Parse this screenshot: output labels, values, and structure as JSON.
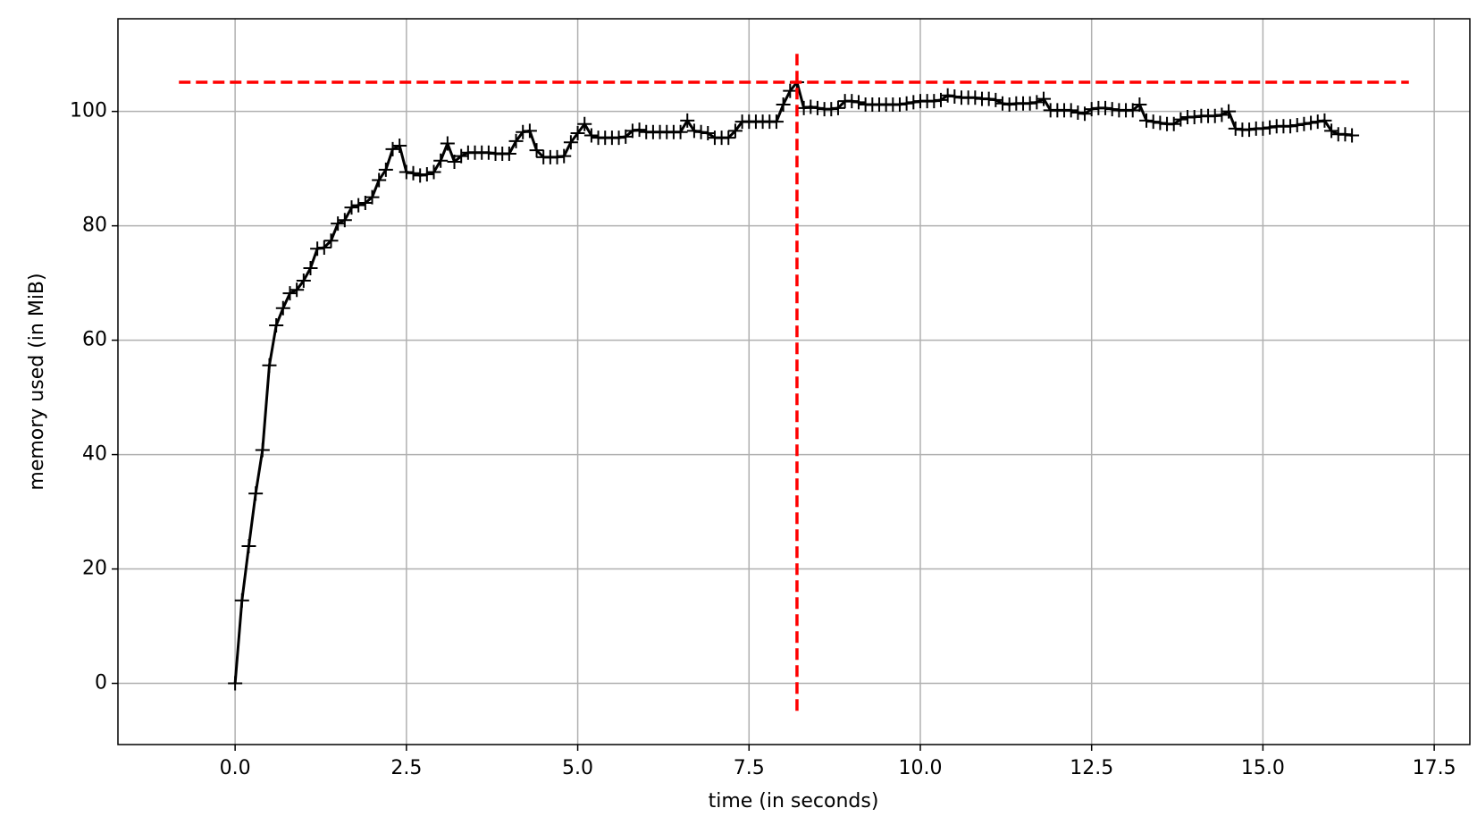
{
  "chart_data": {
    "type": "line",
    "xlabel": "time (in seconds)",
    "ylabel": "memory used (in MiB)",
    "color": "#000000",
    "marker": "+",
    "grid": true,
    "xlim": [
      -1.71,
      18.02
    ],
    "ylim": [
      -10.7,
      116.2
    ],
    "xticks": [
      {
        "value": 0,
        "label": "0.0"
      },
      2.5,
      {
        "value": 5,
        "label": "5.0"
      },
      7.5,
      {
        "value": 10,
        "label": "10.0"
      },
      12.5,
      {
        "value": 15,
        "label": "15.0"
      },
      17.5
    ],
    "yticks": [
      0,
      20,
      40,
      60,
      80,
      100
    ],
    "x": [
      0,
      0.1,
      0.2,
      0.3,
      0.4,
      0.5,
      0.6,
      0.7,
      0.8,
      0.9,
      1,
      1.1,
      1.2,
      1.3,
      1.4,
      1.5,
      1.6,
      1.7,
      1.8,
      1.9,
      2,
      2.1,
      2.2,
      2.3,
      2.4,
      2.5,
      2.6,
      2.7,
      2.8,
      2.9,
      3,
      3.1,
      3.2,
      3.3,
      3.4,
      3.5,
      3.6,
      3.7,
      3.8,
      3.9,
      4,
      4.1,
      4.2,
      4.3,
      4.4,
      4.5,
      4.6,
      4.7,
      4.8,
      4.9,
      5,
      5.1,
      5.2,
      5.3,
      5.4,
      5.5,
      5.6,
      5.7,
      5.8,
      5.9,
      6,
      6.1,
      6.2,
      6.3,
      6.4,
      6.5,
      6.6,
      6.7,
      6.8,
      6.9,
      7,
      7.1,
      7.2,
      7.3,
      7.4,
      7.5,
      7.6,
      7.7,
      7.8,
      7.9,
      8,
      8.1,
      8.2,
      8.3,
      8.4,
      8.5,
      8.6,
      8.7,
      8.8,
      8.9,
      9,
      9.1,
      9.2,
      9.3,
      9.4,
      9.5,
      9.6,
      9.7,
      9.8,
      9.9,
      10,
      10.1,
      10.2,
      10.3,
      10.4,
      10.5,
      10.6,
      10.7,
      10.8,
      10.9,
      11,
      11.1,
      11.2,
      11.3,
      11.4,
      11.5,
      11.6,
      11.7,
      11.8,
      11.9,
      12,
      12.1,
      12.2,
      12.3,
      12.4,
      12.5,
      12.6,
      12.7,
      12.8,
      12.9,
      13,
      13.1,
      13.2,
      13.3,
      13.4,
      13.5,
      13.6,
      13.7,
      13.8,
      13.9,
      14,
      14.1,
      14.2,
      14.3,
      14.4,
      14.5,
      14.6,
      14.7,
      14.8,
      14.9,
      15,
      15.1,
      15.2,
      15.3,
      15.4,
      15.5,
      15.6,
      15.7,
      15.8,
      15.9,
      16,
      16.1,
      16.2,
      16.3
    ],
    "values": [
      0,
      14.5,
      24,
      33.2,
      40.8,
      55.6,
      62.6,
      65.6,
      68.2,
      68.8,
      70.4,
      72.6,
      76,
      76.2,
      77.4,
      80.4,
      81,
      83.2,
      83.6,
      84,
      85,
      88,
      89.8,
      93.4,
      94,
      89.4,
      89.2,
      88.8,
      89,
      89.4,
      91.4,
      94.4,
      91.2,
      92.2,
      92.8,
      92.8,
      92.8,
      92.8,
      92.6,
      92.6,
      92.6,
      94.8,
      96.4,
      96.6,
      93.2,
      92,
      92,
      92,
      92.2,
      94.6,
      96.2,
      97.8,
      95.8,
      95.4,
      95.4,
      95.4,
      95.4,
      95.6,
      96.6,
      96.8,
      96.4,
      96.4,
      96.4,
      96.4,
      96.4,
      96.4,
      98.4,
      96.6,
      96.4,
      96.2,
      95.4,
      95.4,
      95.4,
      96.6,
      98.2,
      98.2,
      98.2,
      98.2,
      98.2,
      98.2,
      101.2,
      103.6,
      105.1,
      100.6,
      100.8,
      100.6,
      100.4,
      100.4,
      100.6,
      101.8,
      101.8,
      101.6,
      101.2,
      101.2,
      101.2,
      101.2,
      101.2,
      101.2,
      101.4,
      101.6,
      101.8,
      101.8,
      101.8,
      102,
      102.8,
      102.6,
      102.4,
      102.4,
      102.4,
      102.2,
      102.2,
      102,
      101.4,
      101.2,
      101.4,
      101.4,
      101.4,
      101.6,
      102.2,
      100.2,
      100.2,
      100.2,
      100.2,
      99.8,
      99.6,
      100.4,
      100.6,
      100.6,
      100.4,
      100.2,
      100.2,
      100.2,
      101.2,
      98.4,
      98.2,
      98,
      97.8,
      97.8,
      98.6,
      99,
      99,
      99.2,
      99.2,
      99.2,
      99.4,
      100,
      97,
      96.8,
      96.8,
      97,
      97,
      97.2,
      97.4,
      97.4,
      97.4,
      97.6,
      97.8,
      98,
      98.2,
      98.4,
      96.6,
      96,
      96,
      95.8
    ],
    "hlines": [
      {
        "y": 105.1,
        "xmin": -0.82,
        "xmax": 17.13,
        "color": "#ff0000"
      }
    ],
    "vlines": [
      {
        "x": 8.2,
        "ymin": -4.8,
        "ymax": 110.2,
        "color": "#ff0000"
      }
    ]
  }
}
